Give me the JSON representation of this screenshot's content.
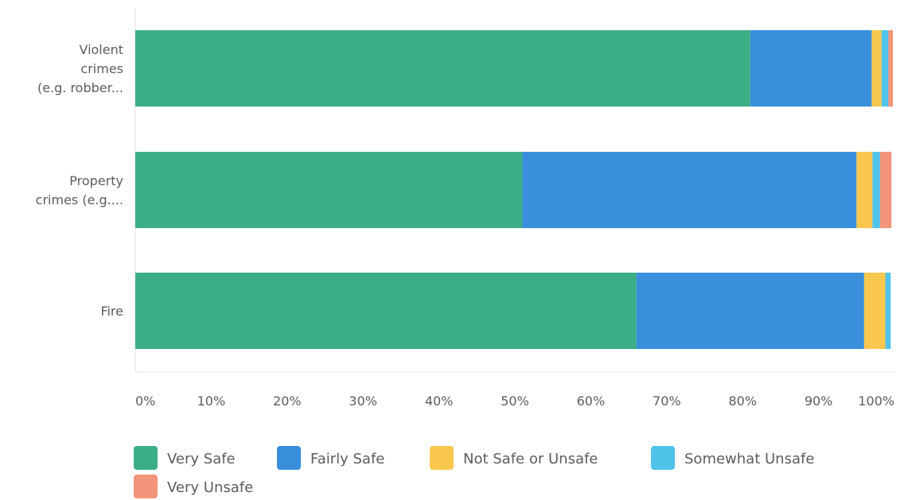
{
  "chart_data": {
    "type": "bar",
    "orientation": "horizontal",
    "stacked": true,
    "categories": [
      "Violent crimes (e.g. robber...",
      "Property crimes (e.g....",
      "Fire"
    ],
    "category_label_lines": [
      [
        "Violent",
        "crimes",
        "(e.g. robber..."
      ],
      [
        "Property",
        "crimes (e.g...."
      ],
      [
        "Fire"
      ]
    ],
    "series": [
      {
        "name": "Very Safe",
        "color": "#3cae86",
        "values": [
          81,
          51,
          66
        ]
      },
      {
        "name": "Fairly Safe",
        "color": "#3a8fdc",
        "values": [
          16,
          44,
          30
        ]
      },
      {
        "name": "Not Safe or Unsafe",
        "color": "#f9c74f",
        "values": [
          1.3,
          2.1,
          2.8
        ]
      },
      {
        "name": "Somewhat Unsafe",
        "color": "#4fc3ea",
        "values": [
          0.9,
          1.0,
          0.7
        ]
      },
      {
        "name": "Very Unsafe",
        "color": "#f2957a",
        "values": [
          0.6,
          1.5,
          0
        ]
      }
    ],
    "x_ticks": [
      "0%",
      "10%",
      "20%",
      "30%",
      "40%",
      "50%",
      "60%",
      "70%",
      "80%",
      "90%",
      "100%"
    ],
    "xlim": [
      0,
      100
    ],
    "xlabel": "",
    "ylabel": "",
    "legend_position": "bottom",
    "grid": false
  }
}
